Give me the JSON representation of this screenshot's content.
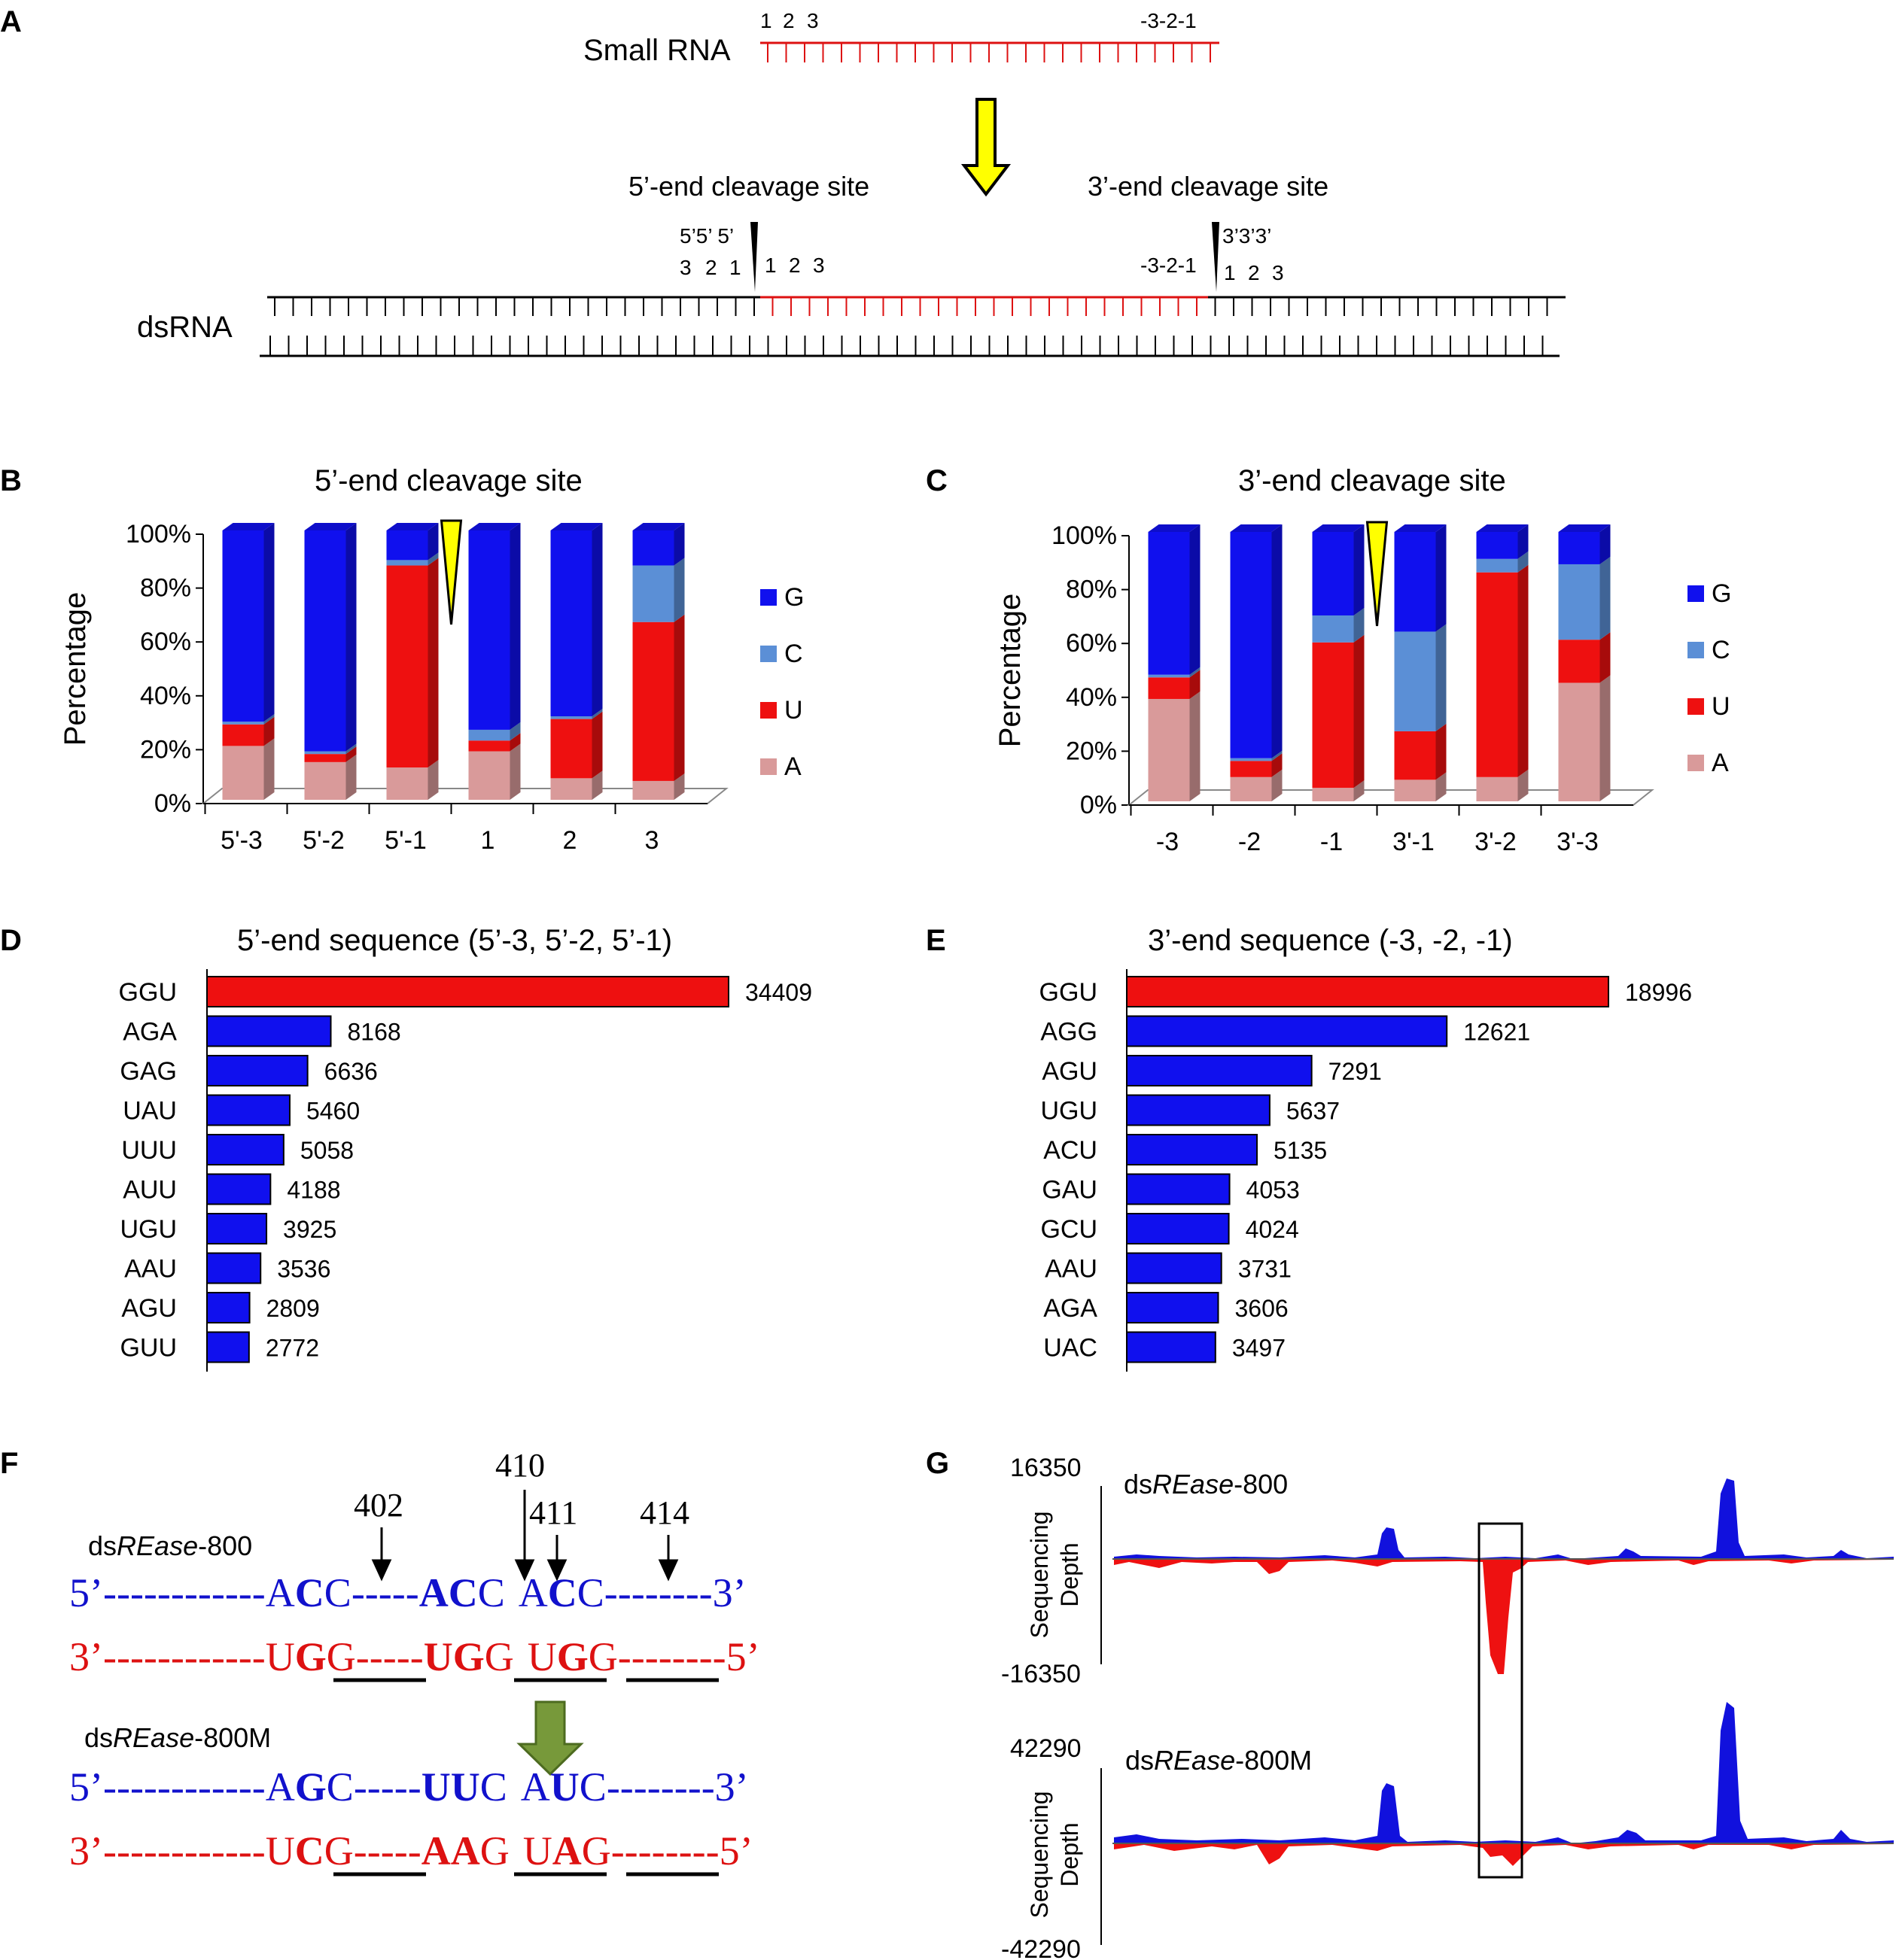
{
  "panel_labels": {
    "A": "A",
    "B": "B",
    "C": "C",
    "D": "D",
    "E": "E",
    "F": "F",
    "G": "G"
  },
  "colors": {
    "G": "#1010ee",
    "C": "#5b8fd6",
    "U": "#ee1010",
    "A": "#d99a9a",
    "strand_blue": "#1111cc",
    "strand_red": "#dd1111",
    "arrow_yellow": "#ffff00",
    "arrow_green": "#77993a"
  },
  "panel_a": {
    "small_rna_label": "Small RNA",
    "small_rna_left_pos": [
      "1",
      "2",
      "3"
    ],
    "small_rna_right_pos": "-3-2-1",
    "five_site_label": "5’-end cleavage site",
    "three_site_label": "3’-end cleavage site",
    "five_top": "5’5’ 5’",
    "five_bottom": [
      "3",
      "2",
      "1"
    ],
    "five_right_pos": [
      "1",
      "2",
      "3"
    ],
    "three_left_pos": "-3-2-1",
    "three_top": "3’3’3’",
    "three_bottom": [
      "1",
      "2",
      "3"
    ],
    "dsrna_label": "dsRNA"
  },
  "chart_data": [
    {
      "panel": "B",
      "type": "bar",
      "stacked": true,
      "title": "5’-end cleavage site",
      "ylabel": "Percentage",
      "ylim": [
        0,
        100
      ],
      "yticks": [
        "0%",
        "20%",
        "40%",
        "60%",
        "80%",
        "100%"
      ],
      "categories": [
        "5'-3",
        "5'-2",
        "5'-1",
        "1",
        "2",
        "3"
      ],
      "series": [
        {
          "name": "A",
          "values": [
            20,
            14,
            12,
            18,
            8,
            7
          ]
        },
        {
          "name": "U",
          "values": [
            8,
            3,
            75,
            4,
            22,
            59
          ]
        },
        {
          "name": "C",
          "values": [
            1,
            1,
            2,
            4,
            1,
            21
          ]
        },
        {
          "name": "G",
          "values": [
            71,
            82,
            11,
            74,
            69,
            13
          ]
        }
      ],
      "legend": [
        "G",
        "C",
        "U",
        "A"
      ],
      "cleavage_after_index": 2
    },
    {
      "panel": "C",
      "type": "bar",
      "stacked": true,
      "title": "3’-end cleavage site",
      "ylabel": "Percentage",
      "ylim": [
        0,
        100
      ],
      "yticks": [
        "0%",
        "20%",
        "40%",
        "60%",
        "80%",
        "100%"
      ],
      "categories": [
        "-3",
        "-2",
        "-1",
        "3'-1",
        "3'-2",
        "3'-3"
      ],
      "series": [
        {
          "name": "A",
          "values": [
            38,
            9,
            5,
            8,
            9,
            44
          ]
        },
        {
          "name": "U",
          "values": [
            8,
            6,
            54,
            18,
            76,
            16
          ]
        },
        {
          "name": "C",
          "values": [
            1,
            1,
            10,
            37,
            5,
            28
          ]
        },
        {
          "name": "G",
          "values": [
            53,
            84,
            31,
            37,
            10,
            12
          ]
        }
      ],
      "legend": [
        "G",
        "C",
        "U",
        "A"
      ],
      "cleavage_after_index": 2
    },
    {
      "panel": "D",
      "type": "bar",
      "orientation": "horizontal",
      "title": "5’-end sequence (5’-3, 5’-2, 5’-1)",
      "categories": [
        "GGU",
        "AGA",
        "GAG",
        "UAU",
        "UUU",
        "AUU",
        "UGU",
        "AAU",
        "AGU",
        "GUU"
      ],
      "values": [
        34409,
        8168,
        6636,
        5460,
        5058,
        4188,
        3925,
        3536,
        2809,
        2772
      ],
      "highlight_index": 0
    },
    {
      "panel": "E",
      "type": "bar",
      "orientation": "horizontal",
      "title": "3’-end sequence (-3, -2, -1)",
      "categories": [
        "GGU",
        "AGG",
        "AGU",
        "UGU",
        "ACU",
        "GAU",
        "GCU",
        "AAU",
        "AGA",
        "UAC"
      ],
      "values": [
        18996,
        12621,
        7291,
        5637,
        5135,
        4053,
        4024,
        3731,
        3606,
        3497
      ],
      "highlight_index": 0
    },
    {
      "panel": "G",
      "type": "area",
      "tracks": [
        {
          "label_plain": "ds",
          "label_italic": "REase",
          "label_suffix": "-800",
          "ymax_label": "16350",
          "ymin_label": "-16350",
          "ymax": 16350,
          "ymin": -16350
        },
        {
          "label_plain": "ds",
          "label_italic": "REase",
          "label_suffix": "-800M",
          "ymax_label": "42290",
          "ymin_label": "-42290",
          "ymax": 42290,
          "ymin": -42290
        }
      ],
      "ylabel_line1": "Sequencing",
      "ylabel_line2": "Depth"
    }
  ],
  "panel_f": {
    "positions": [
      "402",
      "410",
      "411",
      "414"
    ],
    "wt_label_plain": "ds",
    "wt_label_italic": "REase",
    "wt_label_suffix": "-800",
    "mut_label_plain": "ds",
    "mut_label_italic": "REase",
    "mut_label_suffix": "-800M",
    "five_prime": "5’",
    "three_prime": "3’",
    "dashes_long": "------------",
    "dashes_mid": "-----",
    "dashes_end": "--------",
    "wt_top": [
      [
        "A",
        "C",
        "C"
      ],
      [
        "A",
        "C",
        "C"
      ],
      [
        "A",
        "C",
        "C"
      ]
    ],
    "wt_bottom": [
      [
        "U",
        "G",
        "G"
      ],
      [
        "U",
        "G",
        "G"
      ],
      [
        "U",
        "G",
        "G"
      ]
    ],
    "mut_top": [
      [
        "A",
        "G",
        "C"
      ],
      [
        "U",
        "U",
        "C"
      ],
      [
        "A",
        "U",
        "C"
      ]
    ],
    "mut_bottom": [
      [
        "U",
        "C",
        "G"
      ],
      [
        "A",
        "A",
        "G"
      ],
      [
        "U",
        "A",
        "G"
      ]
    ]
  }
}
